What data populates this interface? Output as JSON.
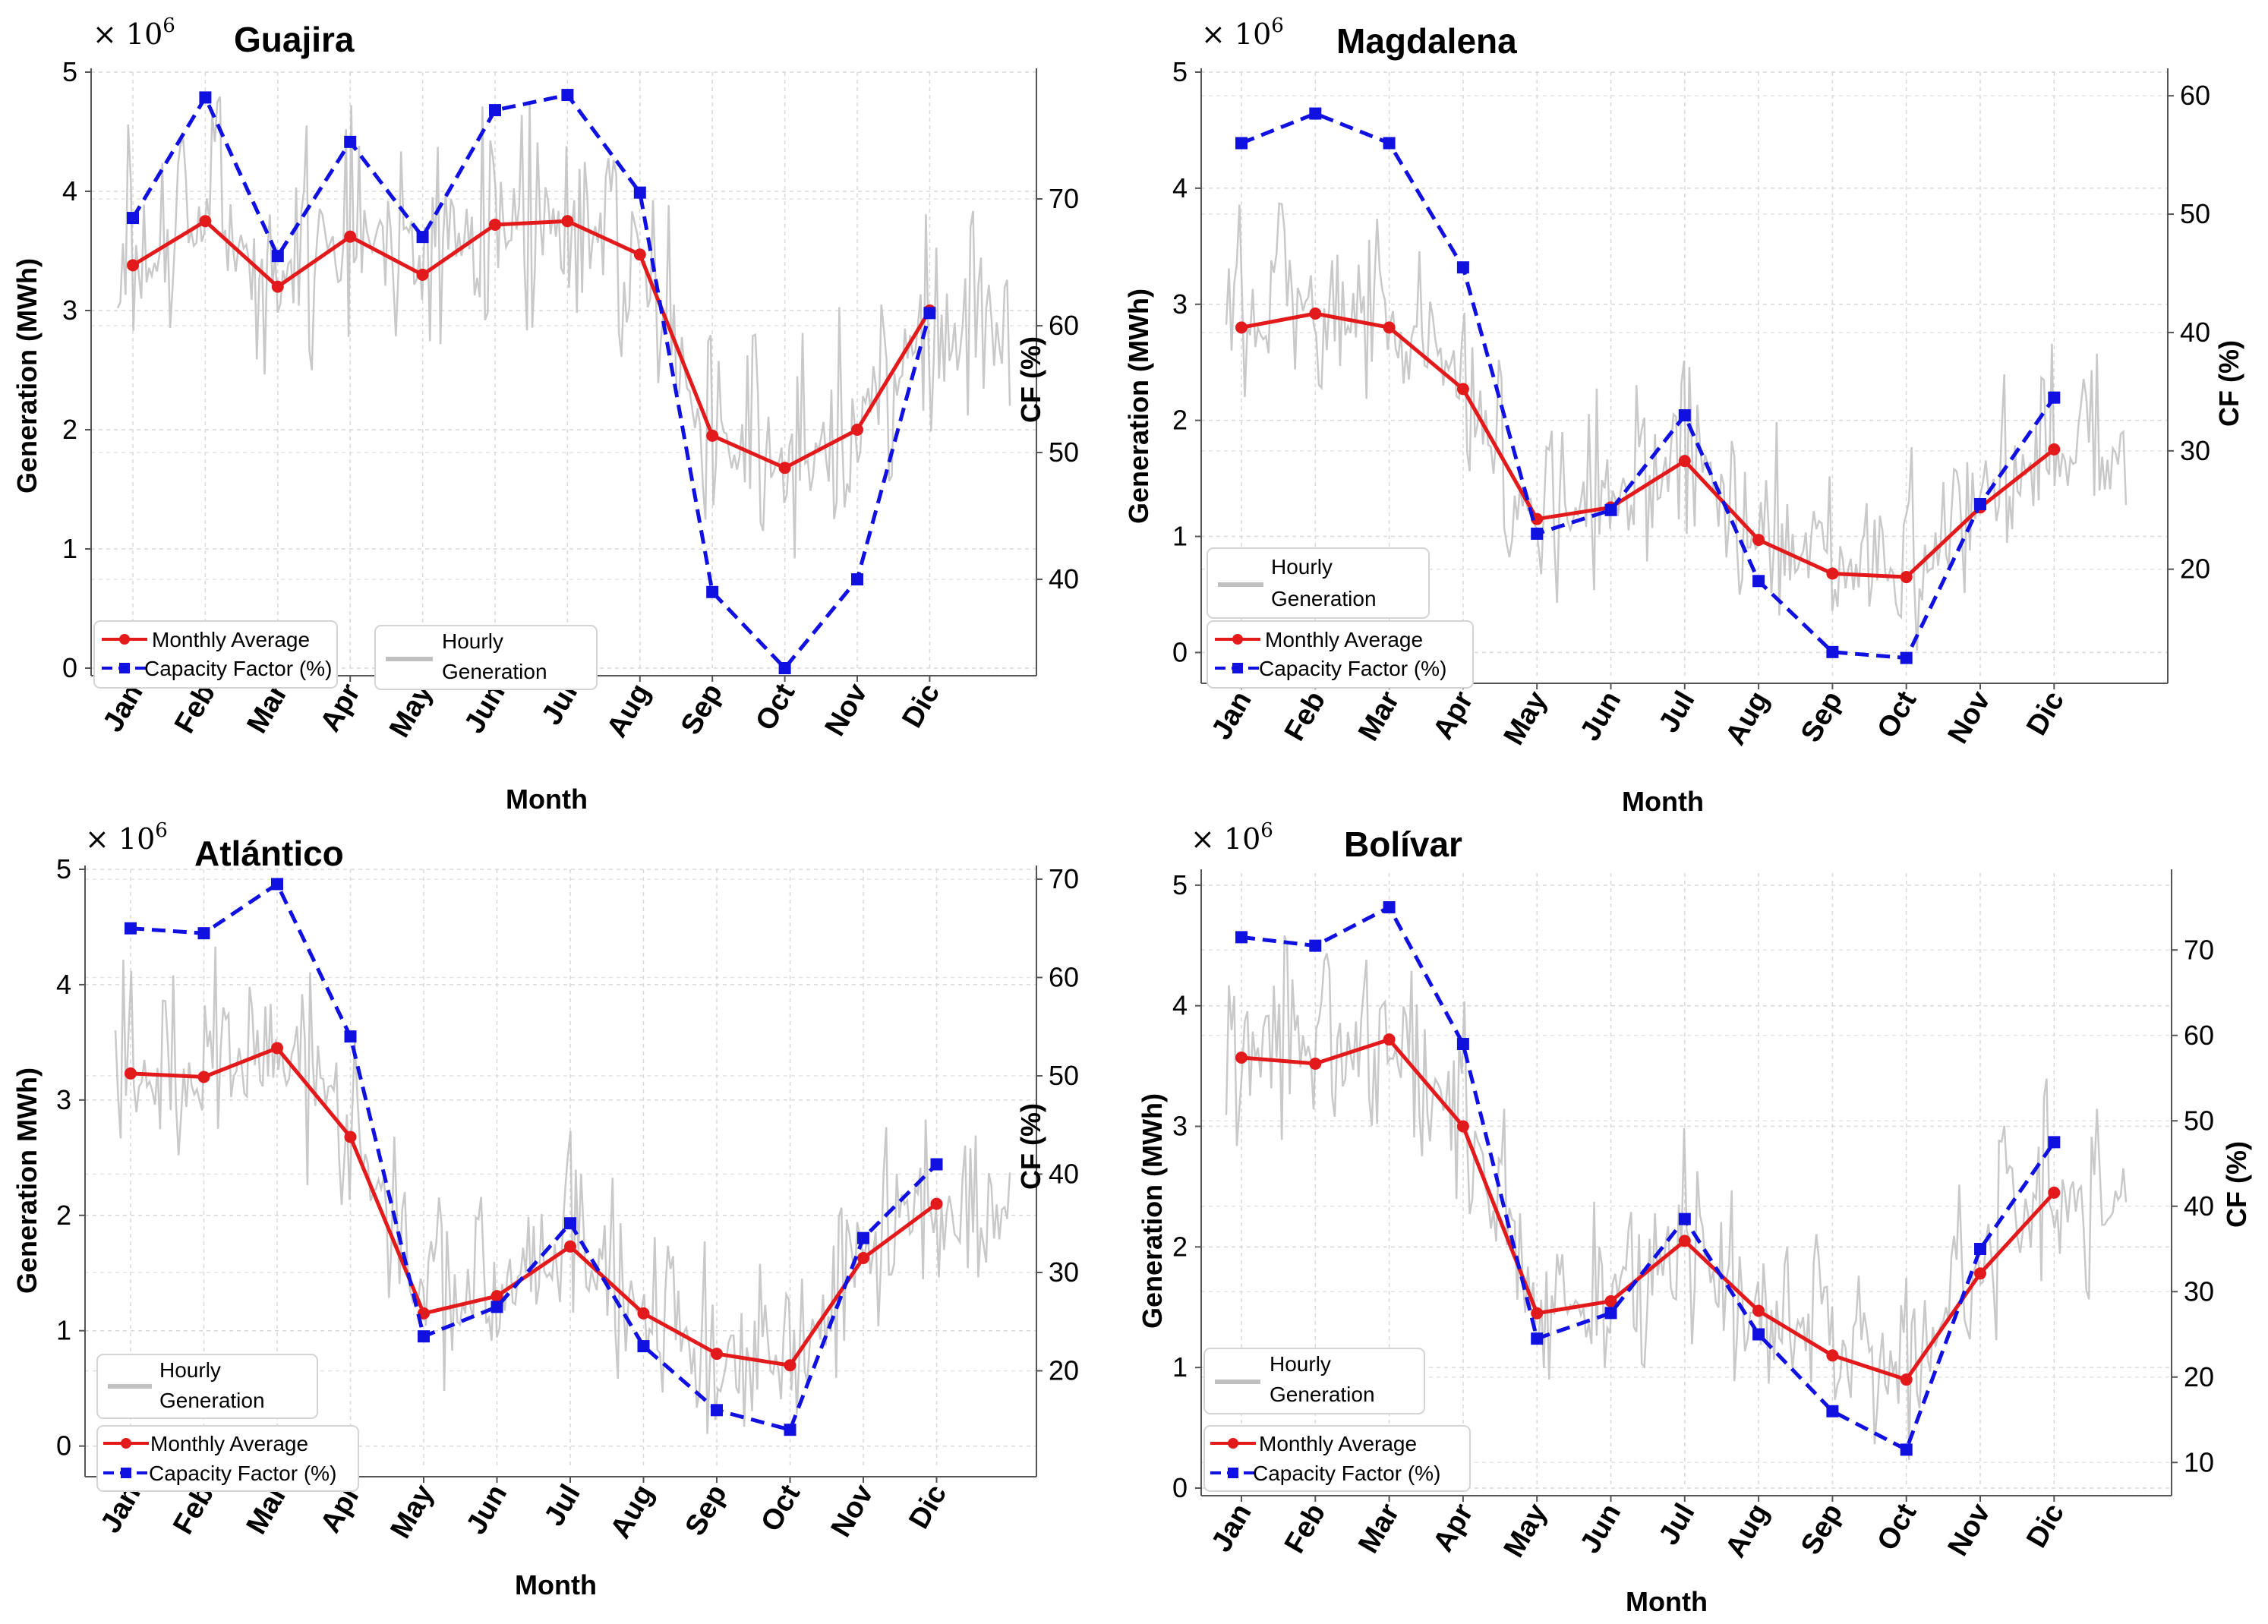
{
  "figure": {
    "multiplier_base": "× 10",
    "multiplier_exp": "6"
  },
  "chart_data": [
    {
      "type": "line",
      "title": "Guajira",
      "xlabel": "Month",
      "ylabel": "Generation  (MWh)",
      "y2label": "CF (%)",
      "categories": [
        "Jan",
        "Feb",
        "Mar",
        "Apr",
        "May",
        "Jun",
        "Jul",
        "Aug",
        "Sep",
        "Oct",
        "Nov",
        "Dic"
      ],
      "ylim": [
        0,
        5
      ],
      "yticks": [
        0,
        1,
        2,
        3,
        4,
        5
      ],
      "y2lim": [
        33,
        80
      ],
      "y2ticks": [
        40,
        50,
        60,
        70
      ],
      "grid": true,
      "series": [
        {
          "name": "Monthly Average",
          "axis": "left",
          "color": "#e31a1c",
          "style": "solid",
          "marker": "circle",
          "values": [
            3.38,
            3.75,
            3.2,
            3.62,
            3.3,
            3.72,
            3.75,
            3.47,
            1.95,
            1.68,
            2.0,
            3.0
          ]
        },
        {
          "name": "Capacity Factor (%)",
          "axis": "right",
          "color": "#1010e0",
          "style": "dashed",
          "marker": "square",
          "values": [
            68.5,
            78.0,
            65.5,
            74.5,
            67.0,
            77.0,
            78.2,
            70.5,
            39.0,
            33.0,
            40.0,
            61.0
          ]
        },
        {
          "name": "Hourly Generation",
          "axis": "left",
          "color": "#c0c0c0",
          "style": "solid",
          "marker": "none",
          "amplitude": 1.1
        }
      ],
      "legend": [
        {
          "position": "lower-left",
          "entries": [
            "Monthly Average",
            "Capacity Factor (%)"
          ]
        },
        {
          "position": "lower-center",
          "entries": [
            "Hourly Generation"
          ]
        }
      ]
    },
    {
      "type": "line",
      "title": "Magdalena",
      "xlabel": "Month",
      "ylabel": "Generation  (MWh)",
      "y2label": "CF (%)",
      "categories": [
        "Jan",
        "Feb",
        "Mar",
        "Apr",
        "May",
        "Jun",
        "Jul",
        "Aug",
        "Sep",
        "Oct",
        "Nov",
        "Dic"
      ],
      "ylim": [
        -0.2,
        5
      ],
      "yticks": [
        0,
        1,
        2,
        3,
        4,
        5
      ],
      "y2lim": [
        11,
        62
      ],
      "y2ticks": [
        20,
        30,
        40,
        50,
        60
      ],
      "grid": true,
      "series": [
        {
          "name": "Monthly Average",
          "axis": "left",
          "color": "#e31a1c",
          "style": "solid",
          "marker": "circle",
          "values": [
            2.8,
            2.92,
            2.8,
            2.27,
            1.15,
            1.25,
            1.65,
            0.97,
            0.68,
            0.65,
            1.25,
            1.75
          ]
        },
        {
          "name": "Capacity Factor (%)",
          "axis": "right",
          "color": "#1010e0",
          "style": "dashed",
          "marker": "square",
          "values": [
            56.0,
            58.5,
            56.0,
            45.5,
            23.0,
            25.0,
            33.0,
            19.0,
            13.0,
            12.5,
            25.5,
            34.5
          ]
        },
        {
          "name": "Hourly Generation",
          "axis": "left",
          "color": "#c0c0c0",
          "style": "solid",
          "marker": "none",
          "amplitude": 1.0
        }
      ],
      "legend": [
        {
          "position": "lower-left",
          "entries": [
            "Monthly Average",
            "Capacity Factor (%)"
          ]
        },
        {
          "position": "lower-left",
          "entries": [
            "Hourly Generation"
          ]
        }
      ]
    },
    {
      "type": "line",
      "title": "Atlántico",
      "xlabel": "Month",
      "ylabel": "Generation  MWh)",
      "y2label": "CF (%)",
      "categories": [
        "Jan",
        "Feb",
        "Mar",
        "Apr",
        "May",
        "Jun",
        "Jul",
        "Aug",
        "Sep",
        "Oct",
        "Nov",
        "Dic"
      ],
      "ylim": [
        -0.2,
        5
      ],
      "yticks": [
        0,
        1,
        2,
        3,
        4,
        5
      ],
      "y2lim": [
        10,
        71
      ],
      "y2ticks": [
        20,
        30,
        40,
        50,
        60,
        70
      ],
      "grid": true,
      "series": [
        {
          "name": "Monthly Average",
          "axis": "left",
          "color": "#e31a1c",
          "style": "solid",
          "marker": "circle",
          "values": [
            3.23,
            3.2,
            3.45,
            2.68,
            1.15,
            1.3,
            1.73,
            1.15,
            0.8,
            0.7,
            1.63,
            2.1
          ]
        },
        {
          "name": "Capacity Factor (%)",
          "axis": "right",
          "color": "#1010e0",
          "style": "dashed",
          "marker": "square",
          "values": [
            65.0,
            64.5,
            69.5,
            54.0,
            23.5,
            26.5,
            35.0,
            22.5,
            16.0,
            14.0,
            33.5,
            41.0
          ]
        },
        {
          "name": "Hourly Generation",
          "axis": "left",
          "color": "#c0c0c0",
          "style": "solid",
          "marker": "none",
          "amplitude": 1.0
        }
      ],
      "legend": [
        {
          "position": "lower-left",
          "entries": [
            "Hourly Generation"
          ]
        },
        {
          "position": "lower-left",
          "entries": [
            "Monthly Average",
            "Capacity Factor (%)"
          ]
        }
      ]
    },
    {
      "type": "line",
      "title": "Bolívar",
      "xlabel": "Month",
      "ylabel": "Generation  (MWh)",
      "y2label": "CF (%)",
      "categories": [
        "Jan",
        "Feb",
        "Mar",
        "Apr",
        "May",
        "Jun",
        "Jul",
        "Aug",
        "Sep",
        "Oct",
        "Nov",
        "Dic"
      ],
      "ylim": [
        0,
        5.1
      ],
      "yticks": [
        0,
        1,
        2,
        3,
        4,
        5
      ],
      "y2lim": [
        7,
        79
      ],
      "y2ticks": [
        10,
        20,
        30,
        40,
        50,
        60,
        70
      ],
      "grid": true,
      "series": [
        {
          "name": "Monthly Average",
          "axis": "left",
          "color": "#e31a1c",
          "style": "solid",
          "marker": "circle",
          "values": [
            3.57,
            3.52,
            3.72,
            3.0,
            1.45,
            1.55,
            2.05,
            1.47,
            1.1,
            0.9,
            1.78,
            2.45
          ]
        },
        {
          "name": "Capacity Factor (%)",
          "axis": "right",
          "color": "#1010e0",
          "style": "dashed",
          "marker": "square",
          "values": [
            71.5,
            70.5,
            75.0,
            59.0,
            24.5,
            27.5,
            38.5,
            25.0,
            16.0,
            11.5,
            35.0,
            47.5
          ]
        },
        {
          "name": "Hourly Generation",
          "axis": "left",
          "color": "#c0c0c0",
          "style": "solid",
          "marker": "none",
          "amplitude": 1.0
        }
      ],
      "legend": [
        {
          "position": "lower-left",
          "entries": [
            "Hourly Generation"
          ]
        },
        {
          "position": "lower-left",
          "entries": [
            "Monthly Average",
            "Capacity Factor (%)"
          ]
        }
      ]
    }
  ]
}
